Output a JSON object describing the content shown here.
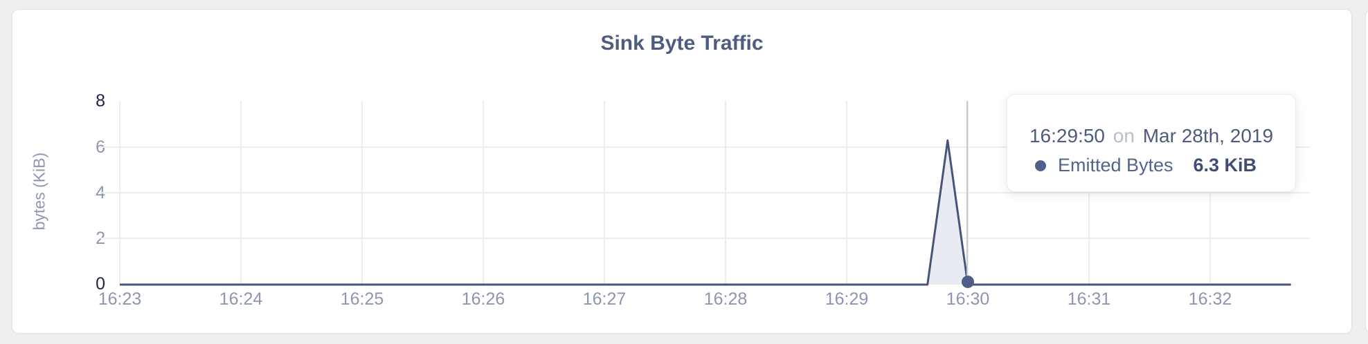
{
  "card": {
    "title": "Sink Byte Traffic"
  },
  "chart_data": {
    "type": "area",
    "title": "Sink Byte Traffic",
    "xlabel": "",
    "ylabel": "bytes (KiB)",
    "ylim": [
      0,
      8
    ],
    "y_ticks": [
      "8",
      "6",
      "4",
      "2",
      "0"
    ],
    "x_ticks": [
      "16:23",
      "16:24",
      "16:25",
      "16:26",
      "16:27",
      "16:28",
      "16:29",
      "16:30",
      "16:31",
      "16:32"
    ],
    "x_range": [
      "16:23:00",
      "16:32:40"
    ],
    "grid": "both",
    "legend_position": "none",
    "sample_interval_seconds": 10,
    "series": [
      {
        "name": "Emitted Bytes",
        "unit": "KiB",
        "note": "flat at 0 for the whole window except one spike at 16:29:50",
        "points": [
          {
            "t": "16:23:00",
            "v": 0
          },
          {
            "t": "16:29:40",
            "v": 0
          },
          {
            "t": "16:29:50",
            "v": 6.3
          },
          {
            "t": "16:30:00",
            "v": 0
          },
          {
            "t": "16:32:40",
            "v": 0
          }
        ]
      }
    ],
    "colors": {
      "line": "#47547a",
      "area_fill": "#e9ebf3",
      "grid": "#ededee",
      "tick_label": "#8c96b0",
      "tick_label_emphasis": "#1b2647",
      "crosshair": "#c9c9c9",
      "dot": "#4e5e87",
      "title": "#4e5c7f"
    }
  },
  "hover": {
    "crosshair_time": "16:30:00"
  },
  "tooltip": {
    "time": "16:29:50",
    "conjunction": "on",
    "date": "Mar 28th, 2019",
    "series_label": "Emitted Bytes",
    "value": "6.3 KiB"
  }
}
